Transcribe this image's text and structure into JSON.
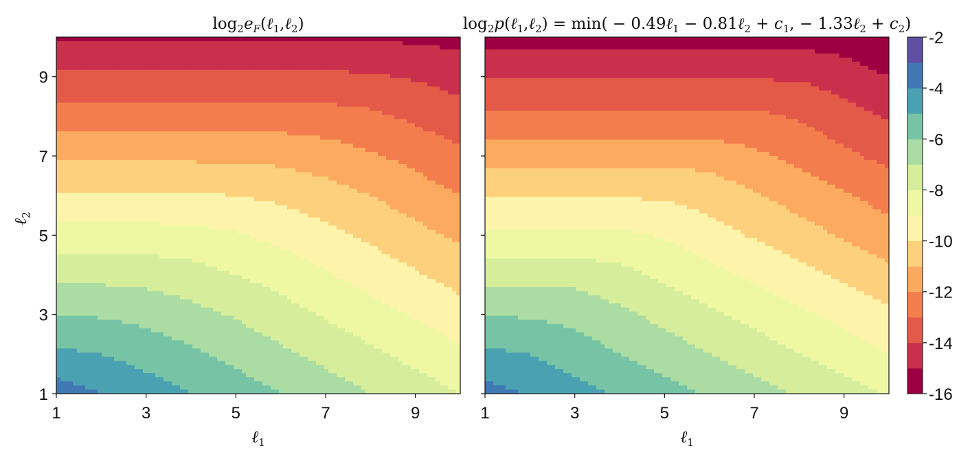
{
  "colors": [
    "#9e0142",
    "#c9304c",
    "#e45a49",
    "#f47d4e",
    "#fcaa5f",
    "#fdd07e",
    "#fef3aa",
    "#eef8a4",
    "#d6ee9b",
    "#aadca4",
    "#76c4a5",
    "#4aa1b1",
    "#4078b4",
    "#5e4fa2"
  ],
  "chart_data": [
    {
      "type": "contourf",
      "title": "log₂eF(ℓ1,ℓ2)",
      "xlabel": "ℓ1",
      "ylabel": "ℓ2",
      "xlim": [
        1,
        10
      ],
      "ylim": [
        1,
        10
      ],
      "xticks": [
        "1",
        "3",
        "5",
        "7",
        "9"
      ],
      "yticks": [
        "1",
        "3",
        "5",
        "7",
        "9"
      ],
      "levels": [
        -16,
        -15,
        -14,
        -13,
        -12,
        -11,
        -10,
        -9,
        -8,
        -7,
        -6,
        -5,
        -4,
        -3,
        -2
      ],
      "x": [
        1,
        2,
        3,
        4,
        5,
        6,
        7,
        8,
        9,
        10
      ],
      "y": [
        1,
        2,
        3,
        4,
        5,
        6,
        7,
        8,
        9,
        10
      ],
      "z": [
        [
          -3.5,
          -4.0,
          -4.5,
          -5.0,
          -5.5,
          -6.0,
          -6.5,
          -7.0,
          -7.5,
          -8.0
        ],
        [
          -4.8,
          -5.0,
          -5.4,
          -5.8,
          -6.3,
          -6.8,
          -7.3,
          -7.8,
          -8.3,
          -8.8
        ],
        [
          -6.0,
          -6.1,
          -6.3,
          -6.7,
          -7.1,
          -7.6,
          -8.1,
          -8.6,
          -9.1,
          -9.6
        ],
        [
          -7.3,
          -7.3,
          -7.4,
          -7.6,
          -8.0,
          -8.4,
          -8.9,
          -9.4,
          -9.9,
          -10.4
        ],
        [
          -8.6,
          -8.6,
          -8.6,
          -8.7,
          -8.9,
          -9.3,
          -9.7,
          -10.2,
          -10.7,
          -11.2
        ],
        [
          -9.9,
          -9.9,
          -9.9,
          -9.9,
          -10.0,
          -10.2,
          -10.6,
          -11.0,
          -11.5,
          -12.0
        ],
        [
          -11.2,
          -11.2,
          -11.2,
          -11.2,
          -11.2,
          -11.3,
          -11.5,
          -11.9,
          -12.3,
          -12.8
        ],
        [
          -12.5,
          -12.5,
          -12.5,
          -12.5,
          -12.5,
          -12.5,
          -12.6,
          -12.8,
          -13.2,
          -13.6
        ],
        [
          -13.8,
          -13.8,
          -13.8,
          -13.8,
          -13.8,
          -13.8,
          -13.8,
          -13.9,
          -14.1,
          -14.4
        ],
        [
          -15.1,
          -15.1,
          -15.1,
          -15.1,
          -15.1,
          -15.1,
          -15.1,
          -15.1,
          -15.2,
          -15.3
        ]
      ]
    },
    {
      "type": "contourf",
      "title": "log₂p(ℓ1,ℓ2) = min(−0.49ℓ1 − 0.81ℓ2 + c1, −1.33ℓ2 + c2)",
      "xlabel": "ℓ1",
      "xlim": [
        1,
        10
      ],
      "ylim": [
        1,
        10
      ],
      "xticks": [
        "1",
        "3",
        "5",
        "7",
        "9"
      ],
      "levels": [
        -16,
        -15,
        -14,
        -13,
        -12,
        -11,
        -10,
        -9,
        -8,
        -7,
        -6,
        -5,
        -4,
        -3,
        -2
      ],
      "x": [
        1,
        2,
        3,
        4,
        5,
        6,
        7,
        8,
        9,
        10
      ],
      "y": [
        1,
        2,
        3,
        4,
        5,
        6,
        7,
        8,
        9,
        10
      ],
      "z": [
        [
          -3.6,
          -4.1,
          -4.6,
          -5.1,
          -5.6,
          -6.1,
          -6.6,
          -7.1,
          -7.6,
          -8.1
        ],
        [
          -4.8,
          -5.0,
          -5.5,
          -6.0,
          -6.5,
          -7.0,
          -7.5,
          -8.0,
          -8.5,
          -9.0
        ],
        [
          -6.1,
          -6.1,
          -6.3,
          -6.8,
          -7.3,
          -7.8,
          -8.3,
          -8.8,
          -9.3,
          -9.8
        ],
        [
          -7.4,
          -7.4,
          -7.4,
          -7.7,
          -8.2,
          -8.7,
          -9.2,
          -9.7,
          -10.2,
          -10.7
        ],
        [
          -8.8,
          -8.8,
          -8.8,
          -8.8,
          -9.1,
          -9.6,
          -10.1,
          -10.6,
          -11.1,
          -11.6
        ],
        [
          -10.1,
          -10.1,
          -10.1,
          -10.1,
          -10.1,
          -10.4,
          -10.9,
          -11.4,
          -11.9,
          -12.4
        ],
        [
          -11.4,
          -11.4,
          -11.4,
          -11.4,
          -11.4,
          -11.4,
          -11.8,
          -12.3,
          -12.8,
          -13.3
        ],
        [
          -12.8,
          -12.8,
          -12.8,
          -12.8,
          -12.8,
          -12.8,
          -12.8,
          -13.1,
          -13.6,
          -14.1
        ],
        [
          -14.1,
          -14.1,
          -14.1,
          -14.1,
          -14.1,
          -14.1,
          -14.1,
          -14.1,
          -14.5,
          -15.0
        ],
        [
          -15.4,
          -15.4,
          -15.4,
          -15.4,
          -15.4,
          -15.4,
          -15.4,
          -15.4,
          -15.5,
          -16.0
        ]
      ]
    }
  ],
  "colorbar": {
    "ticks": [
      "-2",
      "-4",
      "-6",
      "-8",
      "-10",
      "-12",
      "-14",
      "-16"
    ],
    "tick_values": [
      -2,
      -4,
      -6,
      -8,
      -10,
      -12,
      -14,
      -16
    ],
    "range": [
      -16,
      -2
    ]
  }
}
